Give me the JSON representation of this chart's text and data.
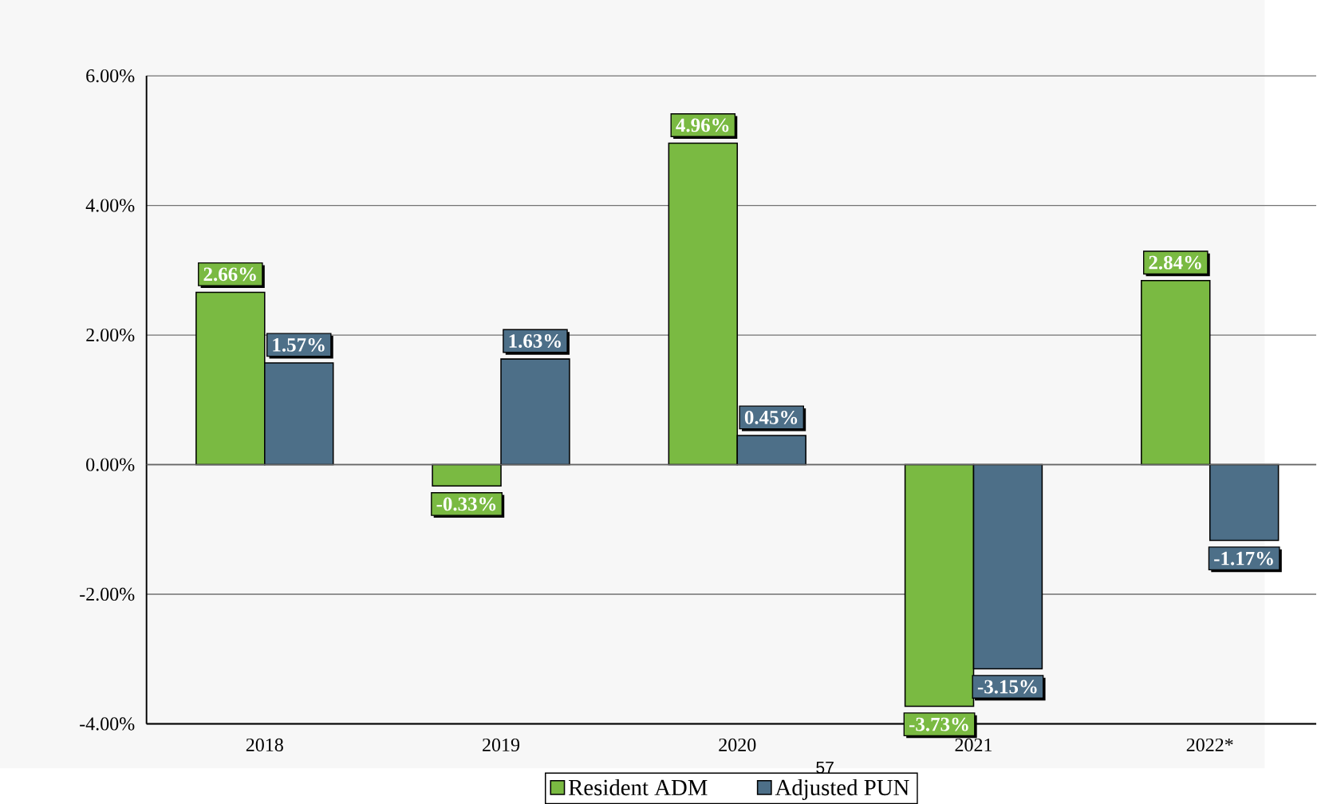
{
  "chart_data": {
    "type": "bar",
    "categories": [
      "2018",
      "2019",
      "2020",
      "2021",
      "2022*"
    ],
    "series": [
      {
        "name": "Resident ADM",
        "color": "#7aba42",
        "values": [
          2.66,
          -0.33,
          4.96,
          -3.73,
          2.84
        ],
        "value_labels": [
          "2.66%",
          "-0.33%",
          "4.96%",
          "-3.73%",
          "2.84%"
        ]
      },
      {
        "name": "Adjusted PUN",
        "color": "#4d6f88",
        "values": [
          1.57,
          1.63,
          0.45,
          -3.15,
          -1.17
        ],
        "value_labels": [
          "1.57%",
          "1.63%",
          "0.45%",
          "-3.15%",
          "-1.17%"
        ]
      }
    ],
    "ylim": [
      -4,
      6
    ],
    "yticks": [
      {
        "value": -4,
        "label": "-4.00%"
      },
      {
        "value": -2,
        "label": "-2.00%"
      },
      {
        "value": 0,
        "label": "0.00%"
      },
      {
        "value": 2,
        "label": "2.00%"
      },
      {
        "value": 4,
        "label": "4.00%"
      },
      {
        "value": 6,
        "label": "6.00%"
      }
    ],
    "grid": "y",
    "legend": "bottom",
    "annotations": [
      "57"
    ]
  }
}
